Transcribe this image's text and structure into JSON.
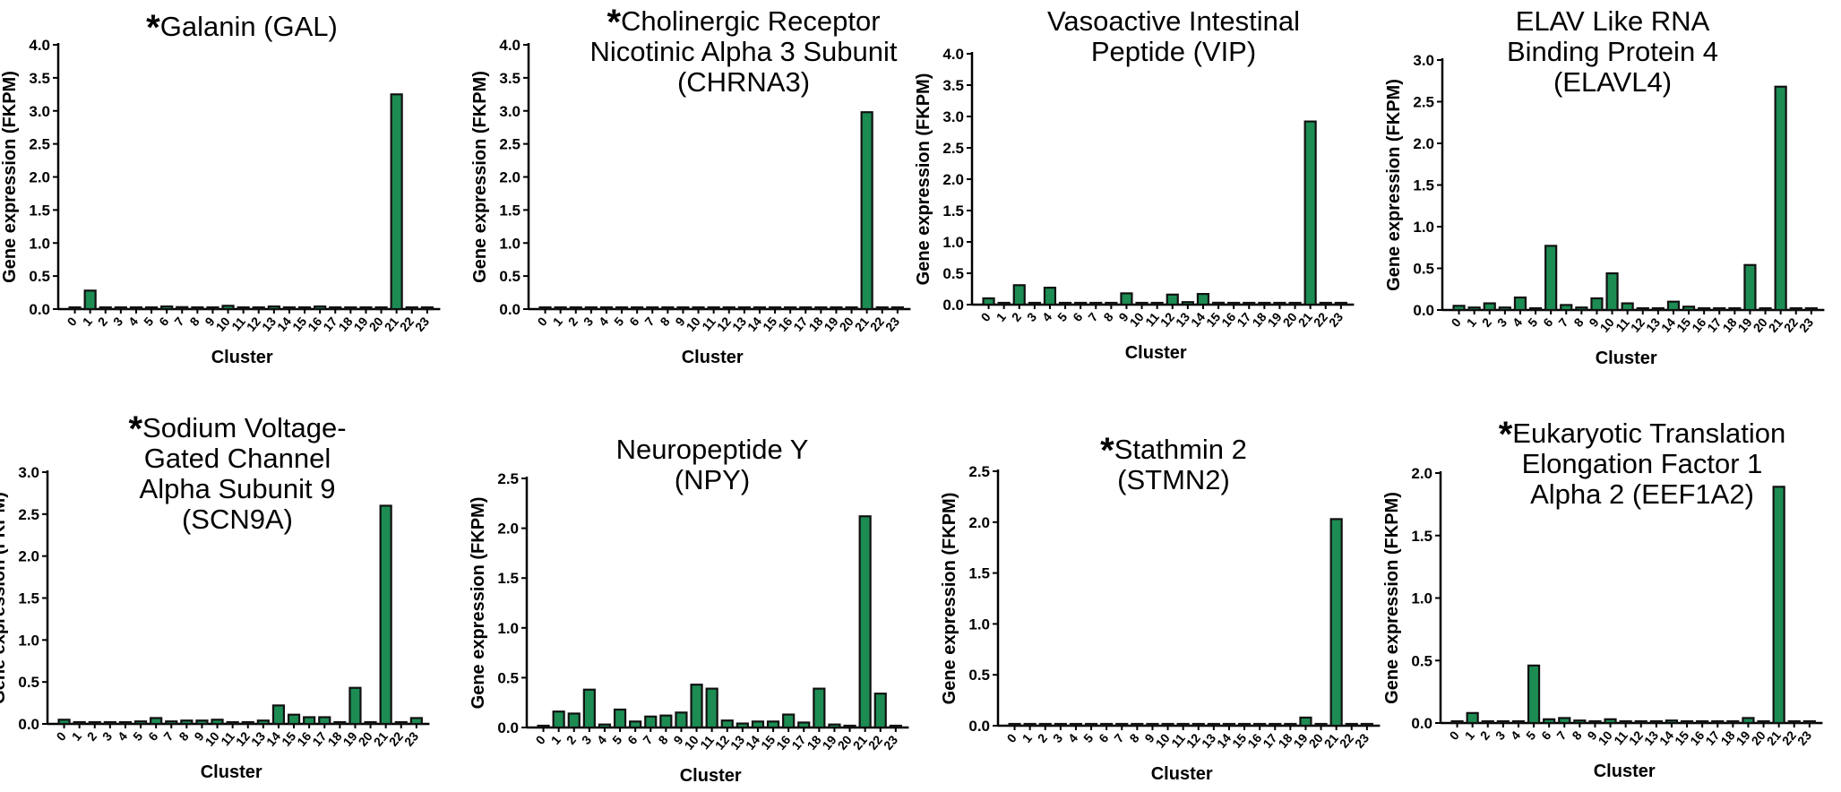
{
  "chart_data": [
    {
      "type": "bar",
      "starred": true,
      "title_lines": [
        "Galanin (GAL)"
      ],
      "xlabel": "Cluster",
      "ylabel": "Gene expression (FKPM)",
      "ylim": [
        0,
        4.0
      ],
      "yticks": [
        "0.0",
        "0.5",
        "1.0",
        "1.5",
        "2.0",
        "2.5",
        "3.0",
        "3.5",
        "4.0"
      ],
      "categories": [
        "0",
        "1",
        "2",
        "3",
        "4",
        "5",
        "6",
        "7",
        "8",
        "9",
        "10",
        "11",
        "12",
        "13",
        "14",
        "15",
        "16",
        "17",
        "18",
        "19",
        "20",
        "21",
        "22",
        "23"
      ],
      "values": [
        0,
        0.28,
        0.01,
        0.01,
        0.02,
        0.02,
        0.04,
        0.03,
        0.02,
        0.02,
        0.05,
        0.01,
        0,
        0.04,
        0,
        0,
        0.04,
        0,
        0,
        0,
        0,
        3.25,
        0,
        0
      ]
    },
    {
      "type": "bar",
      "starred": true,
      "title_lines": [
        "Cholinergic Receptor",
        "Nicotinic Alpha 3 Subunit",
        "(CHRNA3)"
      ],
      "xlabel": "Cluster",
      "ylabel": "Gene expression (FKPM)",
      "ylim": [
        0,
        4.0
      ],
      "yticks": [
        "0.0",
        "0.5",
        "1.0",
        "1.5",
        "2.0",
        "2.5",
        "3.0",
        "3.5",
        "4.0"
      ],
      "categories": [
        "0",
        "1",
        "2",
        "3",
        "4",
        "5",
        "6",
        "7",
        "8",
        "9",
        "10",
        "11",
        "12",
        "13",
        "14",
        "15",
        "16",
        "17",
        "18",
        "19",
        "20",
        "21",
        "22",
        "23"
      ],
      "values": [
        0,
        0,
        0.01,
        0.01,
        0.01,
        0.01,
        0.01,
        0,
        0.01,
        0,
        0.01,
        0.01,
        0,
        0,
        0,
        0,
        0,
        0,
        0,
        0.02,
        0,
        2.98,
        0,
        0
      ]
    },
    {
      "type": "bar",
      "starred": false,
      "title_lines": [
        "Vasoactive Intestinal",
        "Peptide (VIP)"
      ],
      "xlabel": "Cluster",
      "ylabel": "Gene expression (FKPM)",
      "ylim": [
        0,
        4.0
      ],
      "yticks": [
        "0.0",
        "0.5",
        "1.0",
        "1.5",
        "2.0",
        "2.5",
        "3.0",
        "3.5",
        "4.0"
      ],
      "categories": [
        "0",
        "1",
        "2",
        "3",
        "4",
        "5",
        "6",
        "7",
        "8",
        "9",
        "10",
        "11",
        "12",
        "13",
        "14",
        "15",
        "16",
        "17",
        "18",
        "19",
        "20",
        "21",
        "22",
        "23"
      ],
      "values": [
        0.1,
        0.02,
        0.31,
        0.02,
        0.27,
        0.02,
        0.02,
        0.02,
        0.02,
        0.18,
        0.01,
        0.01,
        0.16,
        0.04,
        0.17,
        0.03,
        0,
        0,
        0,
        0,
        0,
        2.92,
        0,
        0
      ]
    },
    {
      "type": "bar",
      "starred": false,
      "title_lines": [
        "ELAV Like RNA",
        "Binding Protein 4",
        "(ELAVL4)"
      ],
      "xlabel": "Cluster",
      "ylabel": "Gene expression (FKPM)",
      "ylim": [
        0,
        3.0
      ],
      "yticks": [
        "0.0",
        "0.5",
        "1.0",
        "1.5",
        "2.0",
        "2.5",
        "3.0"
      ],
      "categories": [
        "0",
        "1",
        "2",
        "3",
        "4",
        "5",
        "6",
        "7",
        "8",
        "9",
        "10",
        "11",
        "12",
        "13",
        "14",
        "15",
        "16",
        "17",
        "18",
        "19",
        "20",
        "21",
        "22",
        "23"
      ],
      "values": [
        0.05,
        0.03,
        0.08,
        0.03,
        0.15,
        0.02,
        0.77,
        0.06,
        0.03,
        0.14,
        0.44,
        0.08,
        0,
        0,
        0.1,
        0.04,
        0.02,
        0,
        0,
        0.54,
        0,
        2.68,
        0.02,
        0
      ]
    },
    {
      "type": "bar",
      "starred": true,
      "title_lines": [
        "Sodium Voltage-",
        "Gated Channel",
        "Alpha Subunit 9",
        "(SCN9A)"
      ],
      "xlabel": "Cluster",
      "ylabel": "Gene expression (FKPM)",
      "ylim": [
        0,
        3.0
      ],
      "yticks": [
        "0.0",
        "0.5",
        "1.0",
        "1.5",
        "2.0",
        "2.5",
        "3.0"
      ],
      "categories": [
        "0",
        "1",
        "2",
        "3",
        "4",
        "5",
        "6",
        "7",
        "8",
        "9",
        "10",
        "11",
        "12",
        "13",
        "14",
        "15",
        "16",
        "17",
        "18",
        "19",
        "20",
        "21",
        "22",
        "23"
      ],
      "values": [
        0.05,
        0.01,
        0.02,
        0.01,
        0.02,
        0.03,
        0.07,
        0.03,
        0.04,
        0.04,
        0.05,
        0.01,
        0.02,
        0.04,
        0.22,
        0.11,
        0.08,
        0.08,
        0,
        0.43,
        0,
        2.6,
        0,
        0.07
      ]
    },
    {
      "type": "bar",
      "starred": false,
      "title_lines": [
        "Neuropeptide Y",
        "(NPY)"
      ],
      "xlabel": "Cluster",
      "ylabel": "Gene expression (FKPM)",
      "ylim": [
        0,
        2.5
      ],
      "yticks": [
        "0.0",
        "0.5",
        "1.0",
        "1.5",
        "2.0",
        "2.5"
      ],
      "categories": [
        "0",
        "1",
        "2",
        "3",
        "4",
        "5",
        "6",
        "7",
        "8",
        "9",
        "10",
        "11",
        "12",
        "13",
        "14",
        "15",
        "16",
        "17",
        "18",
        "19",
        "20",
        "21",
        "22",
        "23"
      ],
      "values": [
        0.01,
        0.16,
        0.14,
        0.38,
        0.03,
        0.18,
        0.06,
        0.11,
        0.12,
        0.15,
        0.43,
        0.39,
        0.07,
        0.04,
        0.06,
        0.06,
        0.13,
        0.05,
        0.39,
        0.03,
        0,
        2.12,
        0.34,
        0
      ]
    },
    {
      "type": "bar",
      "starred": true,
      "title_lines": [
        "Stathmin 2",
        "(STMN2)"
      ],
      "xlabel": "Cluster",
      "ylabel": "Gene expression (FKPM)",
      "ylim": [
        0,
        2.5
      ],
      "yticks": [
        "0.0",
        "0.5",
        "1.0",
        "1.5",
        "2.0",
        "2.5"
      ],
      "categories": [
        "0",
        "1",
        "2",
        "3",
        "4",
        "5",
        "6",
        "7",
        "8",
        "9",
        "10",
        "11",
        "12",
        "13",
        "14",
        "15",
        "16",
        "17",
        "18",
        "19",
        "20",
        "21",
        "22",
        "23"
      ],
      "values": [
        0,
        0.01,
        0,
        0,
        0.01,
        0.01,
        0,
        0.01,
        0.01,
        0,
        0,
        0,
        0,
        0,
        0,
        0,
        0,
        0,
        0,
        0.08,
        0,
        2.03,
        0,
        0
      ]
    },
    {
      "type": "bar",
      "starred": true,
      "title_lines": [
        "Eukaryotic Translation",
        "Elongation Factor 1",
        "Alpha 2 (EEF1A2)"
      ],
      "xlabel": "Cluster",
      "ylabel": "Gene expression (FKPM)",
      "ylim": [
        0,
        2.0
      ],
      "yticks": [
        "0.0",
        "0.5",
        "1.0",
        "1.5",
        "2.0"
      ],
      "categories": [
        "0",
        "1",
        "2",
        "3",
        "4",
        "5",
        "6",
        "7",
        "8",
        "9",
        "10",
        "11",
        "12",
        "13",
        "14",
        "15",
        "16",
        "17",
        "18",
        "19",
        "20",
        "21",
        "22",
        "23"
      ],
      "values": [
        0.01,
        0.08,
        0.01,
        0.01,
        0,
        0.46,
        0.03,
        0.04,
        0.02,
        0,
        0.03,
        0,
        0.01,
        0,
        0.02,
        0,
        0,
        0,
        0,
        0.04,
        0,
        1.89,
        0,
        0
      ]
    }
  ]
}
